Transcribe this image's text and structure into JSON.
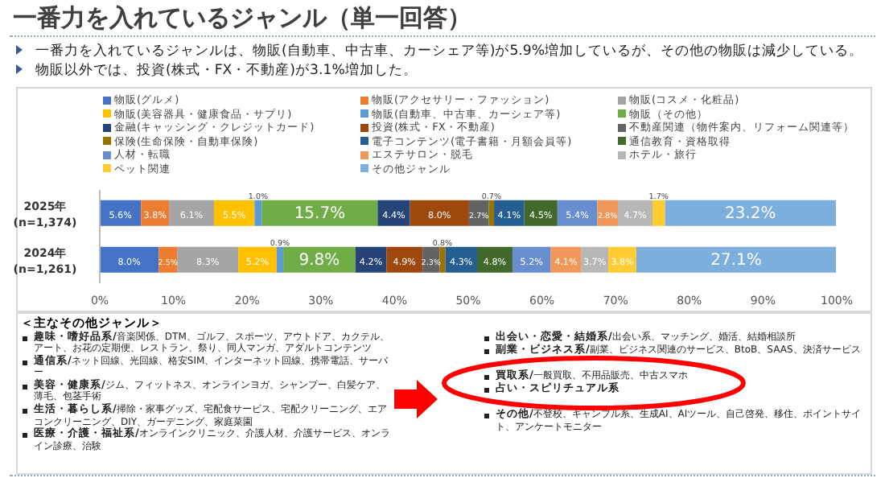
{
  "chart_data": {
    "type": "bar",
    "orientation": "horizontal",
    "stacked": true,
    "title": "一番力を入れているジャンル（単一回答）",
    "categories": [
      "2025年\n(n=1,374)",
      "2024年\n(n=1,261)"
    ],
    "xlim": [
      0,
      100
    ],
    "xticks": [
      {
        "value": 0,
        "label": "0%"
      },
      {
        "value": 10,
        "label": "10%"
      },
      {
        "value": 20,
        "label": "20%"
      },
      {
        "value": 30,
        "label": "30%"
      },
      {
        "value": 40,
        "label": "40%"
      },
      {
        "value": 50,
        "label": "50%"
      },
      {
        "value": 60,
        "label": "60%"
      },
      {
        "value": 70,
        "label": "70%"
      },
      {
        "value": 80,
        "label": "80%"
      },
      {
        "value": 90,
        "label": "90%"
      },
      {
        "value": 100,
        "label": "100%"
      }
    ],
    "legend": "top",
    "series": [
      {
        "name": "物販(グルメ)",
        "color": "#4472c4",
        "values": [
          5.6,
          8.0
        ],
        "value_labels": [
          "5.6%",
          "8.0%"
        ]
      },
      {
        "name": "物販(アクセサリー・ファッション)",
        "color": "#ed7d31",
        "values": [
          3.8,
          2.5
        ],
        "value_labels": [
          "3.8%",
          "2.5%"
        ]
      },
      {
        "name": "物販(コスメ・化粧品)",
        "color": "#a5a5a5",
        "values": [
          6.1,
          8.3
        ],
        "value_labels": [
          "6.1%",
          "8.3%"
        ]
      },
      {
        "name": "物販(美容器具・健康食品・サプリ)",
        "color": "#ffc000",
        "values": [
          5.5,
          5.2
        ],
        "value_labels": [
          "5.5%",
          "5.2%"
        ]
      },
      {
        "name": "物販(自動車、中古車、カーシェア等)",
        "color": "#5b9bd5",
        "values": [
          1.0,
          0.9
        ],
        "value_labels": [
          "1.0%",
          "0.9%"
        ]
      },
      {
        "name": "物販（その他）",
        "color": "#70ad47",
        "values": [
          15.7,
          9.8
        ],
        "value_labels": [
          "15.7%",
          "9.8%"
        ]
      },
      {
        "name": "金融(キャッシング・クレジットカード)",
        "color": "#264478",
        "values": [
          4.4,
          4.2
        ],
        "value_labels": [
          "4.4%",
          "4.2%"
        ]
      },
      {
        "name": "投資(株式・FX・不動産)",
        "color": "#9e480e",
        "values": [
          8.0,
          4.9
        ],
        "value_labels": [
          "8.0%",
          "4.9%"
        ]
      },
      {
        "name": "不動産関連（物件案内、リフォーム関連等）",
        "color": "#636363",
        "values": [
          2.7,
          2.3
        ],
        "value_labels": [
          "2.7%",
          "2.3%"
        ]
      },
      {
        "name": "保険(生命保険・自動車保険)",
        "color": "#997300",
        "values": [
          0.7,
          0.8
        ],
        "value_labels": [
          "0.7%",
          "0.8%"
        ]
      },
      {
        "name": "電子コンテンツ(電子書籍・月額会員等)",
        "color": "#255e91",
        "values": [
          4.1,
          4.3
        ],
        "value_labels": [
          "4.1%",
          "4.3%"
        ]
      },
      {
        "name": "通信教育・資格取得",
        "color": "#43682b",
        "values": [
          4.5,
          4.8
        ],
        "value_labels": [
          "4.5%",
          "4.8%"
        ]
      },
      {
        "name": "人材・転職",
        "color": "#698ed0",
        "values": [
          5.4,
          5.2
        ],
        "value_labels": [
          "5.4%",
          "5.2%"
        ]
      },
      {
        "name": "エステサロン・脱毛",
        "color": "#f1975a",
        "values": [
          2.8,
          4.1
        ],
        "value_labels": [
          "2.8%",
          "4.1%"
        ]
      },
      {
        "name": "ホテル・旅行",
        "color": "#b7b7b7",
        "values": [
          4.7,
          3.7
        ],
        "value_labels": [
          "4.7%",
          "3.7%"
        ]
      },
      {
        "name": "ペット関連",
        "color": "#ffcd33",
        "values": [
          1.7,
          3.8
        ],
        "value_labels": [
          "1.7%",
          "3.8%"
        ]
      },
      {
        "name": "その他ジャンル",
        "color": "#7cafdd",
        "values": [
          23.2,
          27.1
        ],
        "value_labels": [
          "23.2%",
          "27.1%"
        ]
      }
    ],
    "annotations": [
      "一番力を入れているジャンルは、物販(自動車、中古車、カーシェア等)が5.9%増加しているが、その他の物販は減少している。",
      "物販以外では、投資(株式・FX・不動産)が3.1%増加した。",
      "＜主なその他ジャンル＞",
      "趣味・嗜好品系/音楽関係、DTM、ゴルフ、スポーツ、アウトドア、カクテル、アート、お花の定期便、レストラン、祭り、同人マンガ、アダルトコンテンツ",
      "通信系/ネット回線、光回線、格安SIM、インターネット回線、携帯電話、サーバー",
      "美容・健康系/ジム、フィットネス、オンラインヨガ、シャンプー、白髪ケア、薄毛、包茎手術",
      "生活・暮らし系/掃除・家事グッズ、宅配食サービス、宅配クリーニング、エアコンクリーニング、DIY、ガーデニング、家庭菜園",
      "医療・介護・福祉系/オンラインクリニック、介護人材、介護サービス、オンライン診療、治験",
      "出会い・恋愛・結婚系/出会い系、マッチング、婚活、結婚相談所",
      "副業・ビジネス系/副業、ビジネス関連のサービス、BtoB、SAAS、決済サービス",
      "買取系/一般買取、不用品販売、中古スマホ",
      "占い・スピリチュアル系",
      "その他/不登校、ギャンブル系、生成AI、AIツール、自己啓発、移住、ポイントサイト、アンケートモニター"
    ]
  }
}
